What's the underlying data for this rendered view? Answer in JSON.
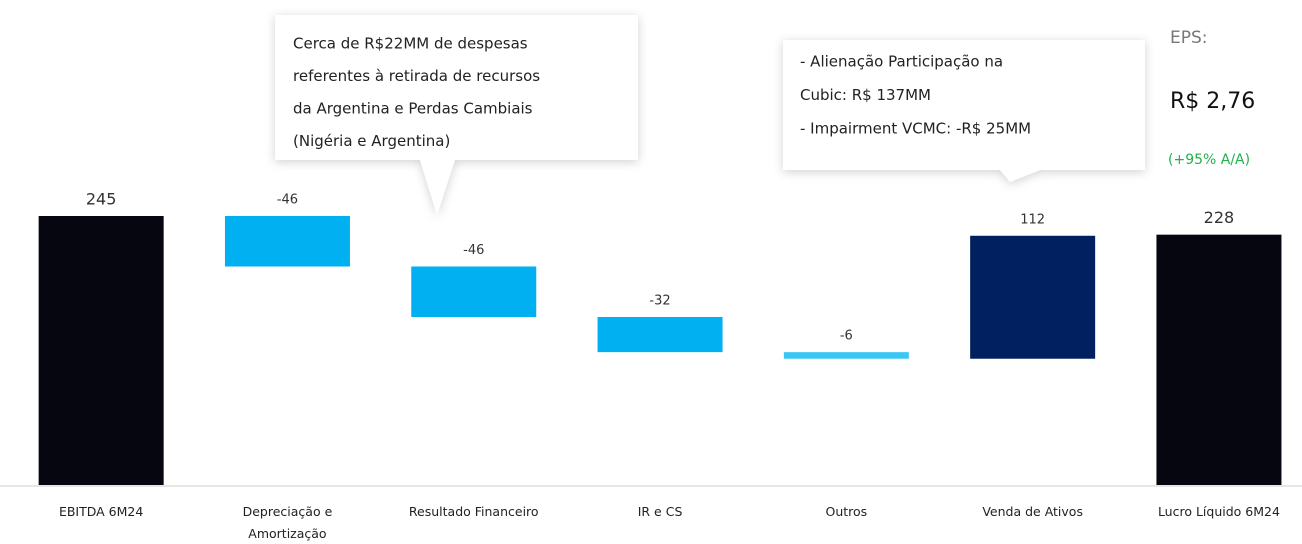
{
  "chart_data": {
    "type": "waterfall",
    "categories": [
      "EBITDA 6M24",
      "Depreciação e Amortização",
      "Resultado Financeiro",
      "IR e CS",
      "Outros",
      "Venda de Ativos",
      "Lucro Líquido 6M24"
    ],
    "values": [
      245,
      -46,
      -46,
      -32,
      -6,
      112,
      228
    ],
    "totals": [
      true,
      false,
      false,
      false,
      false,
      false,
      true
    ],
    "colors": [
      "#05060f",
      "#00b0f0",
      "#00b0f0",
      "#00b0f0",
      "#3cc6f5",
      "#002060",
      "#05060f"
    ],
    "annotations": [
      {
        "lines": [
          "Cerca de R$22MM de despesas",
          "referentes à retirada de recursos",
          "da Argentina e Perdas Cambiais",
          "(Nigéria e Argentina)"
        ]
      },
      {
        "lines": [
          "- Alienação Participação na",
          "Cubic:  R$ 137MM",
          "- Impairment VCMC: -R$ 25MM"
        ]
      }
    ],
    "eps": {
      "label": "EPS:",
      "value": "R$ 2,76",
      "change": "(+95% A/A)"
    }
  }
}
